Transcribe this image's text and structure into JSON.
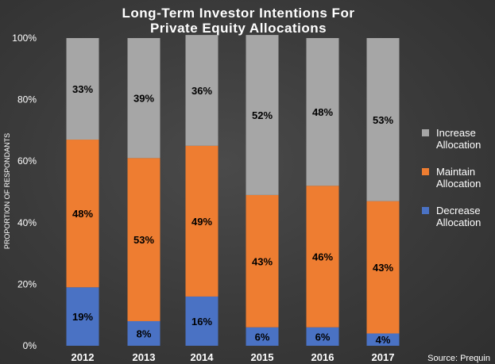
{
  "chart_data": {
    "type": "bar",
    "stacked": true,
    "title_lines": [
      "Long-Term Investor Intentions For",
      "Private Equity Allocations"
    ],
    "xlabel": "",
    "ylabel": "PROPORTION OF RESPONDANTS",
    "ylim": [
      0,
      100
    ],
    "yticks": [
      "0%",
      "20%",
      "40%",
      "60%",
      "80%",
      "100%"
    ],
    "categories": [
      "2012",
      "2013",
      "2014",
      "2015",
      "2016",
      "2017"
    ],
    "series": [
      {
        "name": "Decrease Allocation",
        "legend_lines": [
          "Decrease",
          "Allocation"
        ],
        "color": "#4a72c4",
        "values": [
          19,
          8,
          16,
          6,
          6,
          4
        ],
        "labels": [
          "19%",
          "8%",
          "16%",
          "6%",
          "6%",
          "4%"
        ]
      },
      {
        "name": "Maintain Allocation",
        "legend_lines": [
          "Maintain",
          "Allocation"
        ],
        "color": "#ee7d31",
        "values": [
          48,
          53,
          49,
          43,
          46,
          43
        ],
        "labels": [
          "48%",
          "53%",
          "49%",
          "43%",
          "46%",
          "43%"
        ]
      },
      {
        "name": "Increase Allocation",
        "legend_lines": [
          "Increase",
          "Allocation"
        ],
        "color": "#a6a6a6",
        "values": [
          33,
          39,
          36,
          52,
          48,
          53
        ],
        "labels": [
          "33%",
          "39%",
          "36%",
          "52%",
          "48%",
          "53%"
        ]
      }
    ],
    "legend_order": [
      2,
      1,
      0
    ],
    "legend_position": "right",
    "grid": false,
    "source": "Source: Prequin"
  }
}
